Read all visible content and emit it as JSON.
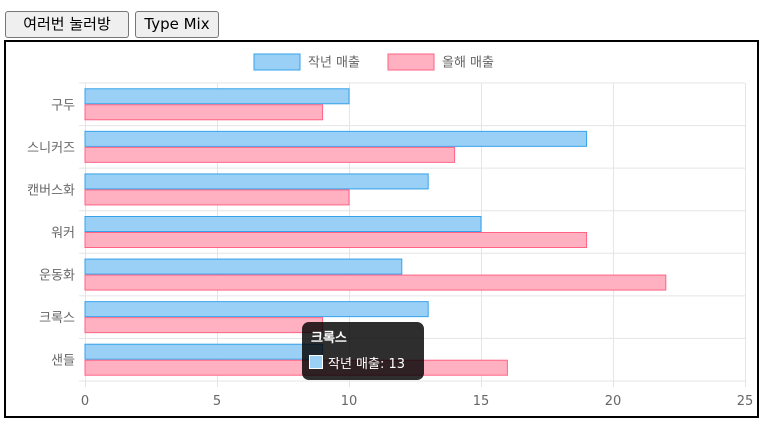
{
  "toolbar": {
    "shuffle_label": "여러번 눌러방",
    "type_mix_label": "Type Mix"
  },
  "colors": {
    "series_last_year_fill": "#9ad0f5",
    "series_last_year_border": "#36a2eb",
    "series_this_year_fill": "#ffb1c1",
    "series_this_year_border": "#ff6384",
    "grid": "#e5e5e5",
    "text": "#666666"
  },
  "chart_data": {
    "type": "bar",
    "orientation": "horizontal",
    "categories": [
      "구두",
      "스니커즈",
      "캔버스화",
      "워커",
      "운동화",
      "크록스",
      "샌들"
    ],
    "series": [
      {
        "name": "작년 매출",
        "values": [
          10,
          19,
          13,
          15,
          12,
          13,
          9
        ]
      },
      {
        "name": "올해 매출",
        "values": [
          9,
          14,
          10,
          19,
          22,
          9,
          16
        ]
      }
    ],
    "xlim": [
      0,
      25
    ],
    "x_ticks": [
      0,
      5,
      10,
      15,
      20,
      25
    ],
    "grid": true,
    "legend_position": "top"
  },
  "tooltip": {
    "title": "크록스",
    "label": "작년 매출: 13"
  }
}
